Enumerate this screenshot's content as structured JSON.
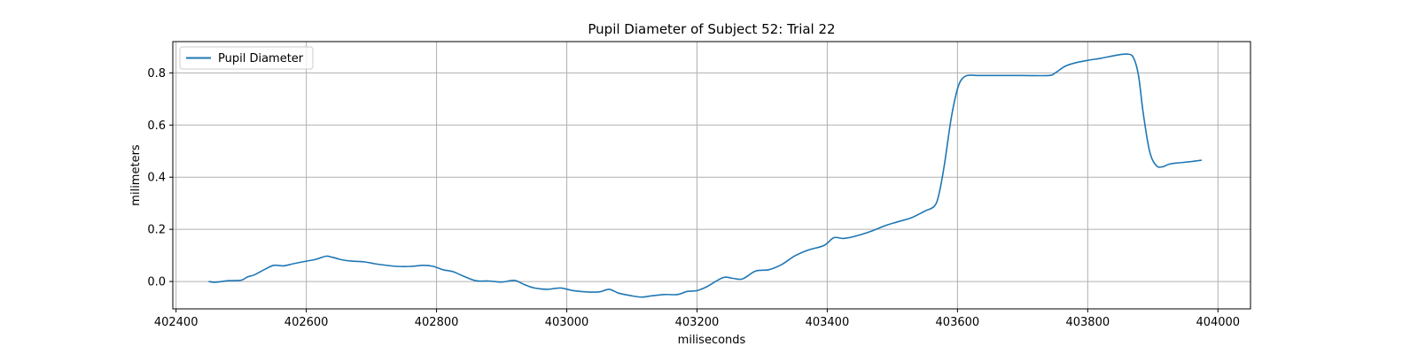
{
  "chart_data": {
    "type": "line",
    "title": "Pupil Diameter of Subject 52: Trial 22",
    "xlabel": "miliseconds",
    "ylabel": "milimeters",
    "xlim": [
      402395,
      404050
    ],
    "ylim": [
      -0.105,
      0.92
    ],
    "xticks": [
      402400,
      402600,
      402800,
      403000,
      403200,
      403400,
      403600,
      403800,
      404000
    ],
    "yticks": [
      0.0,
      0.2,
      0.4,
      0.6,
      0.8
    ],
    "ytick_labels": [
      "0.0",
      "0.2",
      "0.4",
      "0.6",
      "0.8"
    ],
    "grid": true,
    "legend": "upper-left",
    "series": [
      {
        "name": "Pupil Diameter",
        "color": "#1f77b4",
        "x": [
          402450,
          402460,
          402480,
          402500,
          402510,
          402520,
          402535,
          402550,
          402565,
          402580,
          402600,
          402615,
          402630,
          402640,
          402655,
          402670,
          402690,
          402705,
          402720,
          402740,
          402760,
          402780,
          402795,
          402810,
          402825,
          402840,
          402860,
          402880,
          402900,
          402920,
          402935,
          402950,
          402970,
          402990,
          403010,
          403030,
          403050,
          403065,
          403080,
          403100,
          403115,
          403130,
          403150,
          403170,
          403185,
          403200,
          403215,
          403240,
          403255,
          403270,
          403290,
          403310,
          403330,
          403350,
          403370,
          403395,
          403410,
          403425,
          403445,
          403470,
          403490,
          403510,
          403530,
          403550,
          403565,
          403572,
          403580,
          403590,
          403598,
          403605,
          403615,
          403630,
          403650,
          403700,
          403740,
          403750,
          403765,
          403780,
          403800,
          403820,
          403845,
          403860,
          403870,
          403878,
          403885,
          403895,
          403905,
          403915,
          403925,
          403940,
          403960,
          403975
        ],
        "y": [
          0.0,
          -0.003,
          0.003,
          0.005,
          0.018,
          0.025,
          0.045,
          0.062,
          0.06,
          0.068,
          0.078,
          0.085,
          0.097,
          0.093,
          0.083,
          0.078,
          0.075,
          0.068,
          0.063,
          0.058,
          0.058,
          0.062,
          0.058,
          0.045,
          0.038,
          0.022,
          0.003,
          0.002,
          -0.002,
          0.004,
          -0.012,
          -0.025,
          -0.03,
          -0.025,
          -0.035,
          -0.04,
          -0.04,
          -0.03,
          -0.045,
          -0.055,
          -0.06,
          -0.055,
          -0.05,
          -0.05,
          -0.038,
          -0.035,
          -0.02,
          0.015,
          0.012,
          0.01,
          0.04,
          0.045,
          0.065,
          0.098,
          0.12,
          0.138,
          0.168,
          0.165,
          0.175,
          0.195,
          0.215,
          0.23,
          0.245,
          0.27,
          0.29,
          0.34,
          0.45,
          0.62,
          0.72,
          0.77,
          0.79,
          0.79,
          0.79,
          0.79,
          0.79,
          0.8,
          0.825,
          0.838,
          0.848,
          0.856,
          0.868,
          0.872,
          0.86,
          0.79,
          0.65,
          0.5,
          0.445,
          0.44,
          0.45,
          0.455,
          0.46,
          0.465
        ]
      }
    ]
  }
}
